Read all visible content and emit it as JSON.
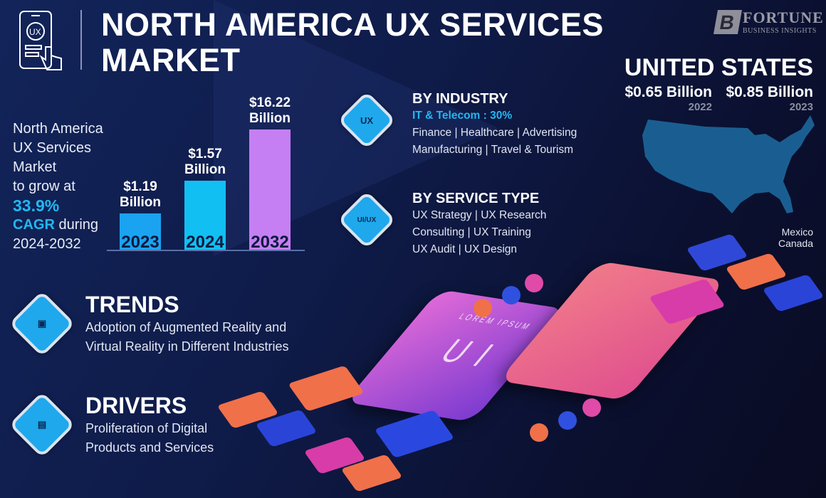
{
  "header": {
    "title_line1": "NORTH AMERICA UX SERVICES",
    "title_line2": "MARKET",
    "icon": "ux-phone-tap-icon"
  },
  "logo": {
    "brand": "FORTUNE",
    "sub": "BUSINESS INSIGHTS",
    "mark": "B"
  },
  "summary": {
    "line1": "North America",
    "line2": "UX Services",
    "line3": "Market",
    "line4": "to grow at",
    "cagr_value": "33.9%",
    "cagr_label": "CAGR",
    "cagr_suffix": " during",
    "period": "2024-2032"
  },
  "chart_data": {
    "type": "bar",
    "title": "",
    "categories": [
      "2023",
      "2024",
      "2032"
    ],
    "values": [
      1.19,
      1.57,
      16.22
    ],
    "labels": [
      "$1.19",
      "$1.57",
      "$16.22"
    ],
    "unit": "Billion",
    "colors": [
      "#1aa3f0",
      "#12bff2",
      "#c57ff2"
    ]
  },
  "industry": {
    "heading": "BY INDUSTRY",
    "highlight": "IT & Telecom : 30%",
    "line1": "Finance  |  Healthcare  |  Advertising",
    "line2": "Manufacturing  |  Travel & Tourism",
    "icon_text": "UX"
  },
  "service": {
    "heading": "BY SERVICE TYPE",
    "line1": "UX Strategy  |  UX Research",
    "line2": "Consulting  |  UX Training",
    "line3": "UX Audit  |  UX Design",
    "icon_text": "UI/UX"
  },
  "us": {
    "title": "UNITED STATES",
    "v1": "$0.65 Billion",
    "y1": "2022",
    "v2": "$0.85 Billion",
    "y2": "2023",
    "other1": "Mexico",
    "other2": "Canada",
    "map_color": "#1a5e91"
  },
  "trends": {
    "heading": "TRENDS",
    "line1": "Adoption of Augmented Reality and",
    "line2": "Virtual Reality in Different Industries"
  },
  "drivers": {
    "heading": "DRIVERS",
    "line1": "Proliferation of Digital",
    "line2": "Products and Services"
  },
  "illustration": {
    "phone_text": "UI",
    "lorem": "LOREM IPSUM"
  }
}
